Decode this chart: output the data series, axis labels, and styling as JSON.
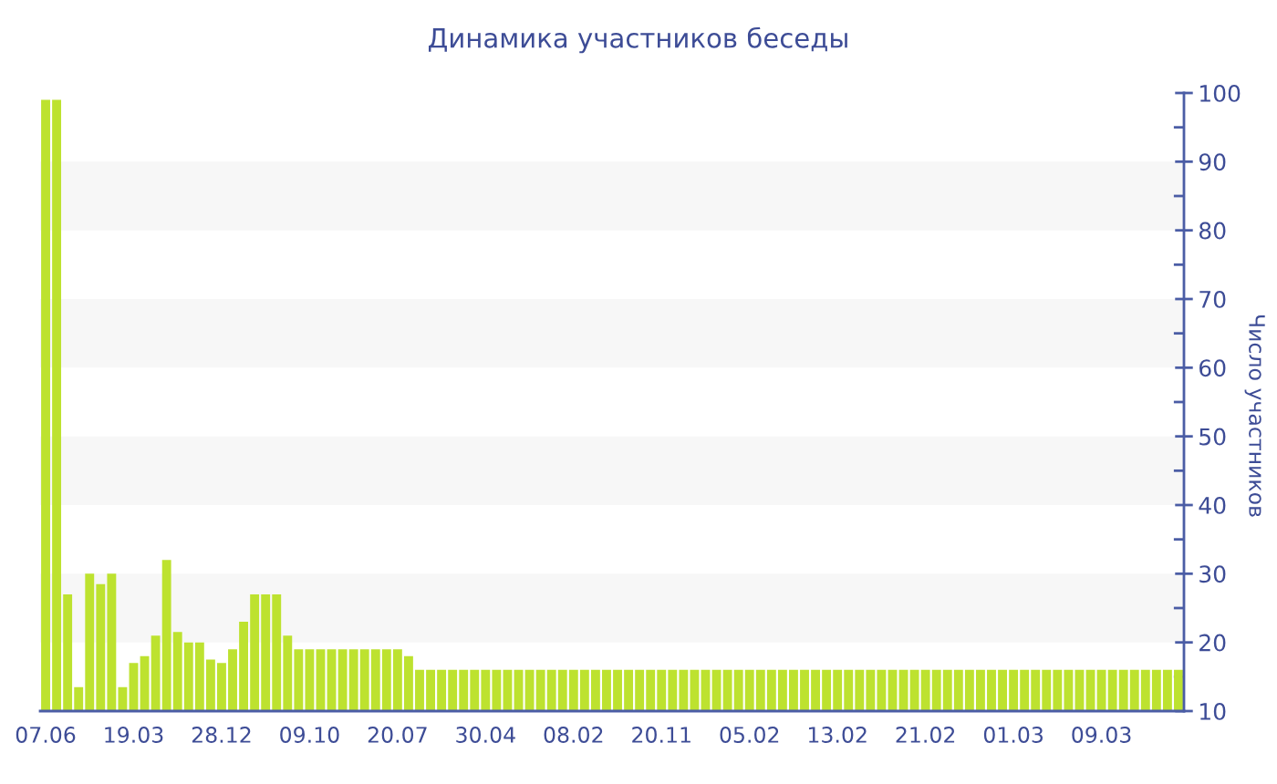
{
  "chart_data": {
    "type": "bar",
    "title": "Динамика участников беседы",
    "ylabel": "Число участников",
    "categories": [
      "07.06",
      null,
      null,
      null,
      null,
      null,
      null,
      null,
      "19.03",
      null,
      null,
      null,
      null,
      null,
      null,
      null,
      "28.12",
      null,
      null,
      null,
      null,
      null,
      null,
      null,
      "09.10",
      null,
      null,
      null,
      null,
      null,
      null,
      null,
      "20.07",
      null,
      null,
      null,
      null,
      null,
      null,
      null,
      "30.04",
      null,
      null,
      null,
      null,
      null,
      null,
      null,
      "08.02",
      null,
      null,
      null,
      null,
      null,
      null,
      null,
      "20.11",
      null,
      null,
      null,
      null,
      null,
      null,
      null,
      "05.02",
      null,
      null,
      null,
      null,
      null,
      null,
      null,
      "13.02",
      null,
      null,
      null,
      null,
      null,
      null,
      null,
      "21.02",
      null,
      null,
      null,
      null,
      null,
      null,
      null,
      "01.03",
      null,
      null,
      null,
      null,
      null,
      null,
      null,
      "09.03",
      null,
      null,
      null,
      null,
      null,
      null,
      null
    ],
    "values": [
      99,
      99,
      27,
      13.5,
      30,
      28.5,
      30,
      13.5,
      17,
      18,
      21,
      32,
      21.5,
      20,
      20,
      17.5,
      17,
      19,
      23,
      27,
      27,
      27,
      21,
      19,
      19,
      19,
      19,
      19,
      19,
      19,
      19,
      19,
      19,
      18,
      16,
      16,
      16,
      16,
      16,
      16,
      16,
      16,
      16,
      16,
      16,
      16,
      16,
      16,
      16,
      16,
      16,
      16,
      16,
      16,
      16,
      16,
      16,
      16,
      16,
      16,
      16,
      16,
      16,
      16,
      16,
      16,
      16,
      16,
      16,
      16,
      16,
      16,
      16,
      16,
      16,
      16,
      16,
      16,
      16,
      16,
      16,
      16,
      16,
      16,
      16,
      16,
      16,
      16,
      16,
      16,
      16,
      16,
      16,
      16,
      16,
      16,
      16,
      16,
      16,
      16,
      16,
      16,
      16,
      16
    ],
    "color": "#bde22f",
    "ylim": [
      10,
      100
    ],
    "yticks": [
      10,
      {
        "value": 15,
        "label": null
      },
      20,
      {
        "value": 25,
        "label": null
      },
      30,
      {
        "value": 35,
        "label": null
      },
      40,
      {
        "value": 45,
        "label": null
      },
      50,
      {
        "value": 55,
        "label": null
      },
      60,
      {
        "value": 65,
        "label": null
      },
      70,
      {
        "value": 75,
        "label": null
      },
      80,
      {
        "value": 85,
        "label": null
      },
      90,
      {
        "value": 95,
        "label": null
      },
      100
    ],
    "bands": [
      {
        "axis": "y",
        "from": 20,
        "to": 30,
        "color": "#f7f7f7"
      },
      {
        "axis": "y",
        "from": 40,
        "to": 50,
        "color": "#f7f7f7"
      },
      {
        "axis": "y",
        "from": 60,
        "to": 70,
        "color": "#f7f7f7"
      },
      {
        "axis": "y",
        "from": 80,
        "to": 90,
        "color": "#f7f7f7"
      }
    ],
    "grid": false,
    "legend": false
  }
}
